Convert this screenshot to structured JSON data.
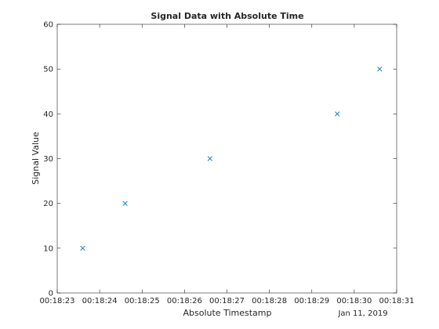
{
  "chart_data": {
    "type": "scatter",
    "title": "Signal Data with Absolute Time",
    "xlabel": "Absolute Timestamp",
    "ylabel": "Signal Value",
    "x_date_label": "Jan 11, 2019",
    "x_tick_labels": [
      "00:18:23",
      "00:18:24",
      "00:18:25",
      "00:18:26",
      "00:18:27",
      "00:18:28",
      "00:18:29",
      "00:18:30",
      "00:18:31"
    ],
    "xlim": [
      "00:18:23",
      "00:18:31"
    ],
    "ylim": [
      0,
      60
    ],
    "y_ticks": [
      0,
      10,
      20,
      30,
      40,
      50,
      60
    ],
    "marker": "x",
    "marker_color": "#0072bd",
    "grid": false,
    "series": [
      {
        "x": [
          "00:18:23.6",
          "00:18:24.6",
          "00:18:26.6",
          "00:18:29.6",
          "00:18:30.6"
        ],
        "y": [
          10,
          20,
          30,
          40,
          50
        ]
      }
    ]
  }
}
